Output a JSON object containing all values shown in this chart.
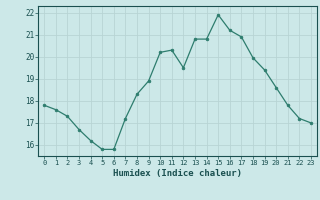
{
  "x": [
    0,
    1,
    2,
    3,
    4,
    5,
    6,
    7,
    8,
    9,
    10,
    11,
    12,
    13,
    14,
    15,
    16,
    17,
    18,
    19,
    20,
    21,
    22,
    23
  ],
  "y": [
    17.8,
    17.6,
    17.3,
    16.7,
    16.2,
    15.8,
    15.8,
    17.2,
    18.3,
    18.9,
    20.2,
    20.3,
    19.5,
    20.8,
    20.8,
    21.9,
    21.2,
    20.9,
    19.95,
    19.4,
    18.6,
    17.8,
    17.2,
    17.0
  ],
  "line_color": "#2e7d6e",
  "marker": "o",
  "marker_size": 2.0,
  "bg_color": "#cce8e8",
  "grid_color": "#b8d4d4",
  "tick_color": "#1a5050",
  "xlabel": "Humidex (Indice chaleur)",
  "xlim": [
    -0.5,
    23.5
  ],
  "ylim": [
    15.5,
    22.3
  ],
  "yticks": [
    16,
    17,
    18,
    19,
    20,
    21,
    22
  ],
  "xticks": [
    0,
    1,
    2,
    3,
    4,
    5,
    6,
    7,
    8,
    9,
    10,
    11,
    12,
    13,
    14,
    15,
    16,
    17,
    18,
    19,
    20,
    21,
    22,
    23
  ]
}
